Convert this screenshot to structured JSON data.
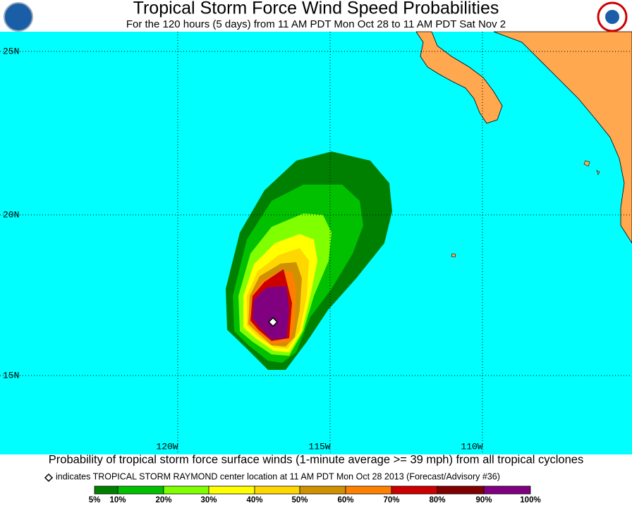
{
  "header": {
    "title": "Tropical Storm Force Wind Speed Probabilities",
    "subtitle": "For the 120 hours (5 days) from 11 AM PDT Mon Oct 28 to 11 AM PDT Sat Nov 2"
  },
  "map": {
    "lat_labels": [
      "25N",
      "20N",
      "15N"
    ],
    "lon_labels": [
      "120W",
      "115W",
      "110W"
    ]
  },
  "footer": {
    "caption": "Probability of tropical storm force surface winds (1-minute average >= 39 mph) from all tropical cyclones",
    "note": "indicates TROPICAL STORM RAYMOND center location at 11 AM PDT Mon Oct 28 2013 (Forecast/Advisory #36)"
  },
  "legend": {
    "labels": [
      "5%",
      "10%",
      "20%",
      "30%",
      "40%",
      "50%",
      "60%",
      "70%",
      "80%",
      "90%",
      "100%"
    ],
    "colors": [
      "#008000",
      "#00c000",
      "#80ff00",
      "#ffff00",
      "#ffd700",
      "#d09000",
      "#ff8000",
      "#cc0000",
      "#800000",
      "#800080"
    ]
  }
}
